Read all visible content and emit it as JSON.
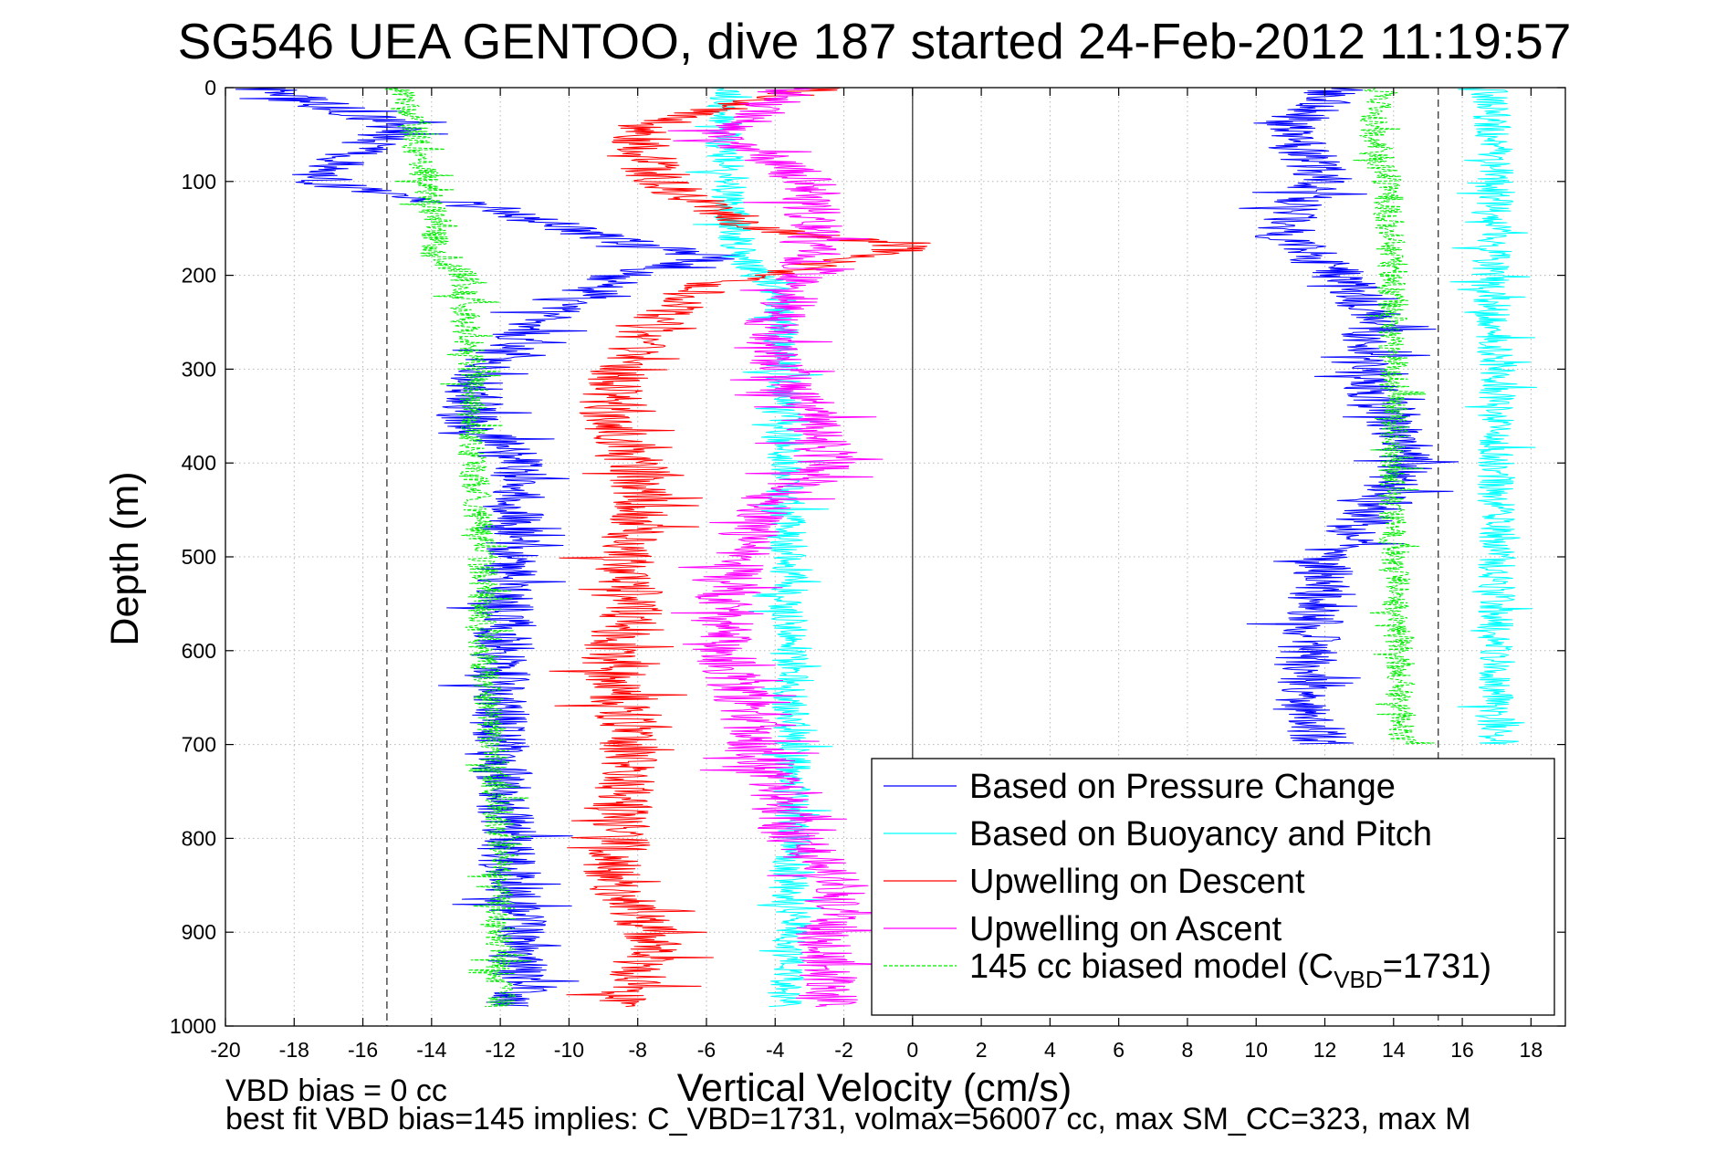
{
  "chart_data": {
    "type": "line",
    "title": "SG546 UEA GENTOO, dive 187 started 24-Feb-2012 11:19:57",
    "xlabel": "Vertical Velocity (cm/s)",
    "ylabel": "Depth (m)",
    "xlim": [
      -20,
      19
    ],
    "ylim": [
      0,
      1000
    ],
    "y_reversed": true,
    "grid": true,
    "x_ticks": [
      -20,
      -18,
      -16,
      -14,
      -12,
      -10,
      -8,
      -6,
      -4,
      -2,
      0,
      2,
      4,
      6,
      8,
      10,
      12,
      14,
      16,
      18
    ],
    "y_ticks": [
      0,
      100,
      200,
      300,
      400,
      500,
      600,
      700,
      800,
      900,
      1000
    ],
    "x_tick_labels": [
      "-20",
      "-18",
      "-16",
      "-14",
      "-12",
      "-10",
      "-8",
      "-6",
      "-4",
      "-2",
      "0",
      "2",
      "4",
      "6",
      "8",
      "10",
      "12",
      "14",
      "16",
      "18"
    ],
    "y_tick_labels": [
      "0",
      "100",
      "200",
      "300",
      "400",
      "500",
      "600",
      "700",
      "800",
      "900",
      "1000"
    ],
    "reference_lines": [
      {
        "x": 0,
        "style": "solid"
      },
      {
        "x": -15.3,
        "style": "dashed"
      },
      {
        "x": 15.3,
        "style": "dashed"
      }
    ],
    "legend_position": "bottom-right",
    "series": [
      {
        "name": "Based on Pressure Change",
        "color": "#0000ff",
        "noise": 0.9,
        "segments": [
          {
            "depth": [
              0,
              40,
              100,
              130,
              160,
              180,
              200,
              250,
              300,
              350,
              400,
              450,
              500,
              600,
              700,
              800,
              900,
              980
            ],
            "x": [
              -19,
              -15,
              -17.5,
              -12,
              -9,
              -5.5,
              -8.5,
              -11,
              -12.5,
              -13,
              -11.5,
              -11.5,
              -11.8,
              -12,
              -12,
              -11.8,
              -11.5,
              -11.5
            ]
          },
          {
            "depth": [
              0,
              40,
              100,
              130,
              160,
              200,
              250,
              300,
              350,
              400,
              450,
              500,
              600,
              650,
              700
            ],
            "x": [
              12.5,
              11,
              12,
              11,
              10.8,
              12.5,
              13.5,
              13,
              14,
              14.5,
              13.5,
              12,
              11.5,
              11.2,
              12
            ]
          }
        ]
      },
      {
        "name": "Based on Buoyancy and Pitch",
        "color": "#00ffff",
        "noise": 0.55,
        "segments": [
          {
            "depth": [
              0,
              50,
              100,
              150,
              180,
              220,
              300,
              400,
              500,
              600,
              700,
              800,
              900,
              980
            ],
            "x": [
              -5.5,
              -5.5,
              -5.4,
              -5.2,
              -5,
              -3.9,
              -3.8,
              -3.7,
              -3.6,
              -3.6,
              -3.5,
              -3.5,
              -3.6,
              -3.7
            ]
          },
          {
            "depth": [
              0,
              100,
              200,
              300,
              400,
              500,
              600,
              700
            ],
            "x": [
              16.8,
              17,
              16.8,
              17,
              17,
              17,
              17,
              17
            ]
          }
        ]
      },
      {
        "name": "Upwelling on Descent",
        "color": "#ff0000",
        "noise": 0.9,
        "segments": [
          {
            "depth": [
              0,
              40,
              100,
              150,
              170,
              190,
              210,
              250,
              300,
              350,
              400,
              450,
              500,
              550,
              600,
              700,
              800,
              850,
              900,
              950,
              980
            ],
            "x": [
              -2.5,
              -8,
              -7.5,
              -4.5,
              0,
              -3,
              -6,
              -7.5,
              -8.5,
              -9,
              -8,
              -7.8,
              -8.5,
              -8,
              -8.8,
              -8.2,
              -8.5,
              -8.8,
              -7.5,
              -8,
              -8.5
            ]
          }
        ]
      },
      {
        "name": "Upwelling on Ascent",
        "color": "#ff00ff",
        "noise": 0.9,
        "segments": [
          {
            "depth": [
              0,
              50,
              100,
              150,
              200,
              250,
              300,
              350,
              400,
              450,
              500,
              550,
              600,
              650,
              700,
              800,
              850,
              900,
              950,
              980
            ],
            "x": [
              -3.5,
              -5.5,
              -3,
              -3,
              -3,
              -4,
              -4,
              -3,
              -2.5,
              -4.5,
              -5,
              -5.5,
              -5.5,
              -5,
              -4.5,
              -3.5,
              -2,
              -2.5,
              -2.5,
              -2.5
            ]
          }
        ]
      },
      {
        "name": "145 cc biased model",
        "legend_prefix": "145 cc biased model (C",
        "legend_subscript": "VBD",
        "legend_suffix": "=1731)",
        "color": "#00ee00",
        "style": "dashed",
        "noise": 0.45,
        "segments": [
          {
            "depth": [
              0,
              50,
              100,
              150,
              180,
              200,
              250,
              300,
              400,
              500,
              600,
              700,
              800,
              900,
              980
            ],
            "x": [
              -15,
              -14.5,
              -14.2,
              -13.8,
              -14,
              -13,
              -13,
              -12.8,
              -12.8,
              -12.5,
              -12.5,
              -12.2,
              -12,
              -12,
              -12
            ]
          },
          {
            "depth": [
              0,
              50,
              100,
              200,
              300,
              400,
              500,
              600,
              700
            ],
            "x": [
              13.6,
              13.4,
              13.8,
              14,
              14,
              14,
              14,
              14.2,
              14.2
            ]
          }
        ]
      }
    ],
    "annotations": [
      "VBD bias = 0 cc",
      "best fit VBD bias=145 implies: C_VBD=1731, volmax=56007 cc, max SM_CC=323, max M"
    ]
  }
}
